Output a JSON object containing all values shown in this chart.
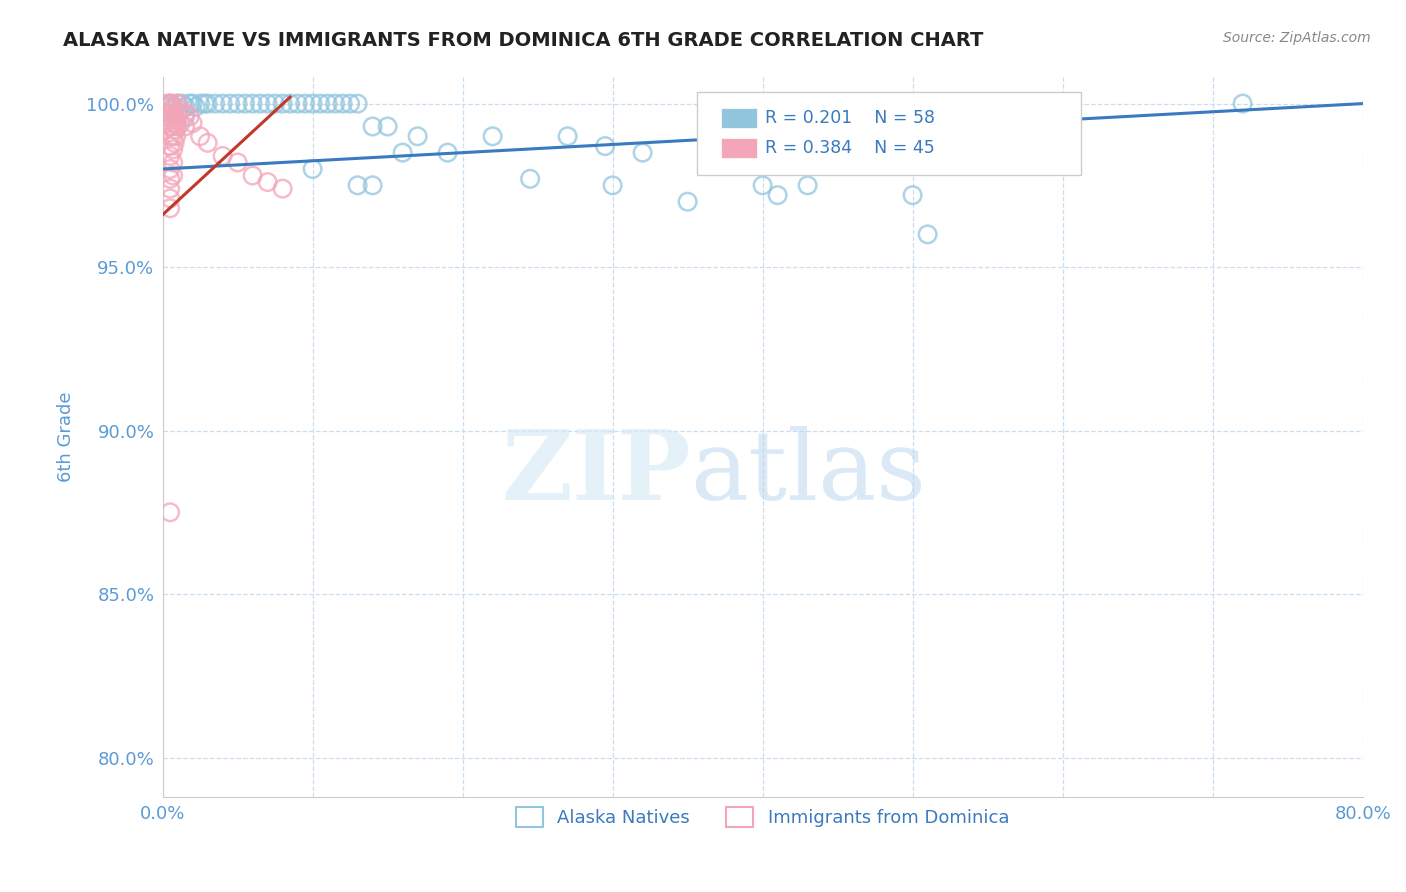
{
  "title": "ALASKA NATIVE VS IMMIGRANTS FROM DOMINICA 6TH GRADE CORRELATION CHART",
  "source": "Source: ZipAtlas.com",
  "ylabel": "6th Grade",
  "xlim": [
    0.0,
    0.8
  ],
  "ylim": [
    0.788,
    1.008
  ],
  "xtick_positions": [
    0.0,
    0.1,
    0.2,
    0.3,
    0.4,
    0.5,
    0.6,
    0.7,
    0.8
  ],
  "xticklabels": [
    "0.0%",
    "",
    "",
    "",
    "",
    "",
    "",
    "",
    "80.0%"
  ],
  "ytick_positions": [
    0.8,
    0.85,
    0.9,
    0.95,
    1.0
  ],
  "yticklabels": [
    "80.0%",
    "85.0%",
    "90.0%",
    "95.0%",
    "100.0%"
  ],
  "legend_label1": "Alaska Natives",
  "legend_label2": "Immigrants from Dominica",
  "blue_color": "#92c5de",
  "pink_color": "#f4a5b8",
  "trendline_color": "#3a7abf",
  "pink_trendline_color": "#c0392b",
  "title_color": "#222222",
  "tick_color": "#5b9bd5",
  "grid_color": "#c8dff0",
  "background_color": "#ffffff",
  "blue_scatter": [
    [
      0.003,
      0.999
    ],
    [
      0.005,
      1.0
    ],
    [
      0.005,
      0.997
    ],
    [
      0.007,
      0.999
    ],
    [
      0.01,
      1.0
    ],
    [
      0.01,
      0.997
    ],
    [
      0.01,
      0.993
    ],
    [
      0.013,
      1.0
    ],
    [
      0.015,
      0.999
    ],
    [
      0.015,
      0.996
    ],
    [
      0.018,
      1.0
    ],
    [
      0.02,
      1.0
    ],
    [
      0.022,
      0.999
    ],
    [
      0.025,
      1.0
    ],
    [
      0.028,
      1.0
    ],
    [
      0.03,
      1.0
    ],
    [
      0.035,
      1.0
    ],
    [
      0.04,
      1.0
    ],
    [
      0.045,
      1.0
    ],
    [
      0.05,
      1.0
    ],
    [
      0.055,
      1.0
    ],
    [
      0.06,
      1.0
    ],
    [
      0.065,
      1.0
    ],
    [
      0.07,
      1.0
    ],
    [
      0.075,
      1.0
    ],
    [
      0.08,
      1.0
    ],
    [
      0.085,
      1.0
    ],
    [
      0.09,
      1.0
    ],
    [
      0.095,
      1.0
    ],
    [
      0.1,
      1.0
    ],
    [
      0.105,
      1.0
    ],
    [
      0.11,
      1.0
    ],
    [
      0.115,
      1.0
    ],
    [
      0.12,
      1.0
    ],
    [
      0.125,
      1.0
    ],
    [
      0.13,
      1.0
    ],
    [
      0.14,
      0.993
    ],
    [
      0.15,
      0.993
    ],
    [
      0.16,
      0.985
    ],
    [
      0.17,
      0.99
    ],
    [
      0.19,
      0.985
    ],
    [
      0.1,
      0.98
    ],
    [
      0.13,
      0.975
    ],
    [
      0.14,
      0.975
    ],
    [
      0.22,
      0.99
    ],
    [
      0.245,
      0.977
    ],
    [
      0.27,
      0.99
    ],
    [
      0.295,
      0.987
    ],
    [
      0.3,
      0.975
    ],
    [
      0.32,
      0.985
    ],
    [
      0.35,
      0.97
    ],
    [
      0.37,
      0.982
    ],
    [
      0.4,
      0.975
    ],
    [
      0.41,
      0.972
    ],
    [
      0.43,
      0.975
    ],
    [
      0.5,
      0.972
    ],
    [
      0.51,
      0.96
    ],
    [
      0.72,
      1.0
    ]
  ],
  "pink_scatter": [
    [
      0.003,
      1.0
    ],
    [
      0.004,
      0.999
    ],
    [
      0.004,
      0.996
    ],
    [
      0.005,
      1.0
    ],
    [
      0.005,
      0.998
    ],
    [
      0.005,
      0.996
    ],
    [
      0.005,
      0.993
    ],
    [
      0.005,
      0.99
    ],
    [
      0.005,
      0.987
    ],
    [
      0.005,
      0.984
    ],
    [
      0.005,
      0.98
    ],
    [
      0.005,
      0.977
    ],
    [
      0.005,
      0.974
    ],
    [
      0.005,
      0.971
    ],
    [
      0.005,
      0.968
    ],
    [
      0.006,
      1.0
    ],
    [
      0.006,
      0.997
    ],
    [
      0.006,
      0.993
    ],
    [
      0.007,
      0.998
    ],
    [
      0.007,
      0.994
    ],
    [
      0.007,
      0.99
    ],
    [
      0.007,
      0.986
    ],
    [
      0.007,
      0.982
    ],
    [
      0.007,
      0.978
    ],
    [
      0.008,
      0.996
    ],
    [
      0.008,
      0.992
    ],
    [
      0.008,
      0.988
    ],
    [
      0.009,
      0.994
    ],
    [
      0.009,
      0.99
    ],
    [
      0.01,
      1.0
    ],
    [
      0.01,
      0.996
    ],
    [
      0.012,
      0.998
    ],
    [
      0.012,
      0.994
    ],
    [
      0.015,
      0.997
    ],
    [
      0.015,
      0.993
    ],
    [
      0.018,
      0.996
    ],
    [
      0.02,
      0.994
    ],
    [
      0.025,
      0.99
    ],
    [
      0.03,
      0.988
    ],
    [
      0.04,
      0.984
    ],
    [
      0.05,
      0.982
    ],
    [
      0.06,
      0.978
    ],
    [
      0.07,
      0.976
    ],
    [
      0.08,
      0.974
    ],
    [
      0.005,
      0.875
    ]
  ],
  "blue_trend_x": [
    0.0,
    0.8
  ],
  "blue_trend_y": [
    0.98,
    1.0
  ],
  "pink_trend_x": [
    0.0,
    0.085
  ],
  "pink_trend_y": [
    0.966,
    1.002
  ]
}
